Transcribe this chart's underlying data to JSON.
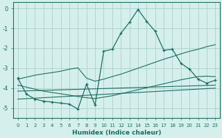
{
  "xlabel": "Humidex (Indice chaleur)",
  "background_color": "#d5efed",
  "grid_color": "#b0d4d0",
  "line_color": "#1a6b60",
  "xlim": [
    -0.5,
    23.5
  ],
  "ylim": [
    -5.5,
    0.3
  ],
  "yticks": [
    0,
    -1,
    -2,
    -3,
    -4,
    -5
  ],
  "xticks": [
    0,
    1,
    2,
    3,
    4,
    5,
    6,
    7,
    8,
    9,
    10,
    11,
    12,
    13,
    14,
    15,
    16,
    17,
    18,
    19,
    20,
    21,
    22,
    23
  ],
  "line1_x": [
    0,
    1,
    2,
    3,
    4,
    5,
    6,
    7,
    8,
    9,
    10,
    11,
    12,
    13,
    14,
    15,
    16,
    17,
    18,
    19,
    20,
    21,
    22,
    23
  ],
  "line1_y": [
    -3.5,
    -4.3,
    -4.55,
    -4.65,
    -4.7,
    -4.75,
    -4.8,
    -5.05,
    -3.8,
    -4.85,
    -2.15,
    -2.05,
    -1.25,
    -0.7,
    -0.05,
    -0.65,
    -1.15,
    -2.1,
    -2.05,
    -2.75,
    -3.05,
    -3.55,
    -3.75,
    -3.6
  ],
  "line2_x": [
    0,
    1,
    2,
    3,
    4,
    5,
    6,
    7,
    8,
    9,
    10,
    11,
    12,
    13,
    14,
    15,
    16,
    17,
    18,
    19,
    20,
    21,
    22,
    23
  ],
  "line2_y": [
    -3.55,
    -3.45,
    -3.35,
    -3.28,
    -3.22,
    -3.15,
    -3.05,
    -2.98,
    -3.5,
    -3.65,
    -3.55,
    -3.42,
    -3.3,
    -3.15,
    -3.0,
    -2.85,
    -2.7,
    -2.55,
    -2.42,
    -2.28,
    -2.15,
    -2.05,
    -1.92,
    -1.82
  ],
  "line3_x": [
    0,
    1,
    2,
    3,
    4,
    5,
    6,
    7,
    8,
    9,
    10,
    11,
    12,
    13,
    14,
    15,
    16,
    17,
    18,
    19,
    20,
    21,
    22,
    23
  ],
  "line3_y": [
    -3.85,
    -3.95,
    -4.05,
    -4.15,
    -4.22,
    -4.28,
    -4.35,
    -4.42,
    -4.48,
    -4.52,
    -4.45,
    -4.38,
    -4.28,
    -4.18,
    -4.08,
    -3.98,
    -3.88,
    -3.78,
    -3.68,
    -3.58,
    -3.5,
    -3.42,
    -3.4,
    -3.42
  ],
  "line4_x": [
    0,
    23
  ],
  "line4_y": [
    -4.15,
    -3.85
  ],
  "line5_x": [
    0,
    23
  ],
  "line5_y": [
    -4.55,
    -4.0
  ]
}
